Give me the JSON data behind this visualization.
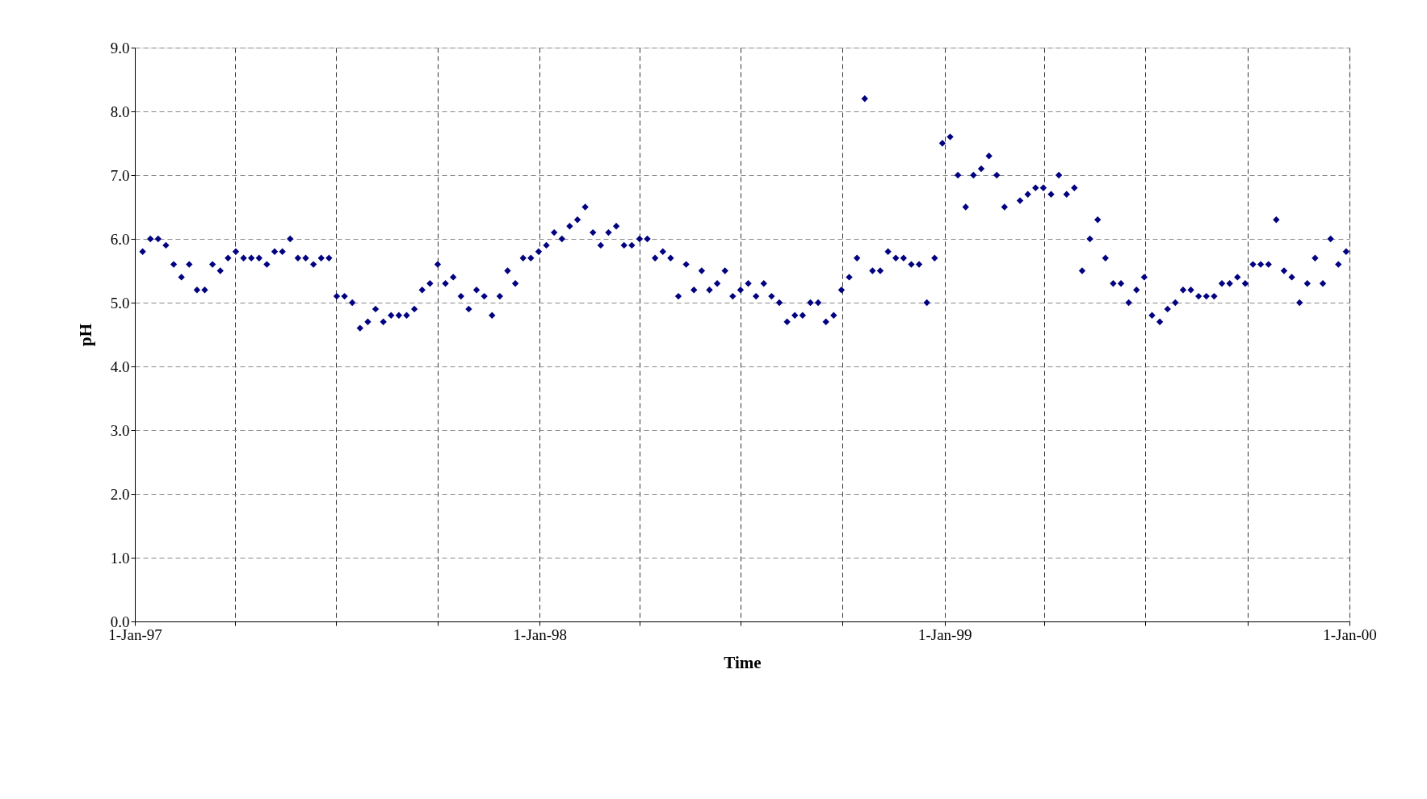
{
  "chart_data": {
    "type": "scatter",
    "xlabel": "Time",
    "ylabel": "pH",
    "x": [
      "1997-01-08",
      "1997-01-15",
      "1997-01-22",
      "1997-01-29",
      "1997-02-05",
      "1997-02-12",
      "1997-02-19",
      "1997-02-26",
      "1997-03-05",
      "1997-03-12",
      "1997-03-19",
      "1997-03-26",
      "1997-04-02",
      "1997-04-09",
      "1997-04-16",
      "1997-04-23",
      "1997-04-30",
      "1997-05-07",
      "1997-05-14",
      "1997-05-21",
      "1997-05-28",
      "1997-06-04",
      "1997-06-11",
      "1997-06-18",
      "1997-06-25",
      "1997-07-02",
      "1997-07-09",
      "1997-07-16",
      "1997-07-23",
      "1997-07-30",
      "1997-08-06",
      "1997-08-13",
      "1997-08-20",
      "1997-08-27",
      "1997-09-03",
      "1997-09-10",
      "1997-09-17",
      "1997-09-24",
      "1997-10-01",
      "1997-10-08",
      "1997-10-15",
      "1997-10-22",
      "1997-10-29",
      "1997-11-05",
      "1997-11-12",
      "1997-11-19",
      "1997-11-26",
      "1997-12-03",
      "1997-12-10",
      "1997-12-17",
      "1997-12-24",
      "1997-12-31",
      "1998-01-07",
      "1998-01-14",
      "1998-01-21",
      "1998-01-28",
      "1998-02-04",
      "1998-02-11",
      "1998-02-18",
      "1998-02-25",
      "1998-03-04",
      "1998-03-11",
      "1998-03-18",
      "1998-03-25",
      "1998-04-01",
      "1998-04-08",
      "1998-04-15",
      "1998-04-22",
      "1998-04-29",
      "1998-05-06",
      "1998-05-13",
      "1998-05-20",
      "1998-05-27",
      "1998-06-03",
      "1998-06-10",
      "1998-06-17",
      "1998-06-24",
      "1998-07-01",
      "1998-07-08",
      "1998-07-15",
      "1998-07-22",
      "1998-07-29",
      "1998-08-05",
      "1998-08-12",
      "1998-08-19",
      "1998-08-26",
      "1998-09-02",
      "1998-09-09",
      "1998-09-16",
      "1998-09-23",
      "1998-09-30",
      "1998-10-07",
      "1998-10-14",
      "1998-10-21",
      "1998-10-28",
      "1998-11-04",
      "1998-11-11",
      "1998-11-18",
      "1998-11-25",
      "1998-12-02",
      "1998-12-09",
      "1998-12-16",
      "1998-12-23",
      "1998-12-30",
      "1999-01-06",
      "1999-01-13",
      "1999-01-20",
      "1999-01-27",
      "1999-02-03",
      "1999-02-10",
      "1999-02-17",
      "1999-02-24",
      "1999-03-10",
      "1999-03-17",
      "1999-03-24",
      "1999-03-31",
      "1999-04-07",
      "1999-04-14",
      "1999-04-21",
      "1999-04-28",
      "1999-05-05",
      "1999-05-12",
      "1999-05-19",
      "1999-05-26",
      "1999-06-02",
      "1999-06-09",
      "1999-06-16",
      "1999-06-23",
      "1999-06-30",
      "1999-07-07",
      "1999-07-14",
      "1999-07-21",
      "1999-07-28",
      "1999-08-04",
      "1999-08-11",
      "1999-08-18",
      "1999-08-25",
      "1999-09-01",
      "1999-09-08",
      "1999-09-15",
      "1999-09-22",
      "1999-09-29",
      "1999-10-06",
      "1999-10-13",
      "1999-10-20",
      "1999-10-27",
      "1999-11-03",
      "1999-11-10",
      "1999-11-17",
      "1999-11-24",
      "1999-12-01",
      "1999-12-08",
      "1999-12-15",
      "1999-12-22",
      "1999-12-29"
    ],
    "series": [
      {
        "color": "#000080",
        "values": [
          5.8,
          6.0,
          6.0,
          5.9,
          5.6,
          5.4,
          5.6,
          5.2,
          5.2,
          5.6,
          5.5,
          5.7,
          5.8,
          5.7,
          5.7,
          5.7,
          5.6,
          5.8,
          5.8,
          6.0,
          5.7,
          5.7,
          5.6,
          5.7,
          5.7,
          5.1,
          5.1,
          5.0,
          4.6,
          4.7,
          4.9,
          4.7,
          4.8,
          4.8,
          4.8,
          4.9,
          5.2,
          5.3,
          5.6,
          5.3,
          5.4,
          5.1,
          4.9,
          5.2,
          5.1,
          4.8,
          5.1,
          5.5,
          5.3,
          5.7,
          5.7,
          5.8,
          5.9,
          6.1,
          6.0,
          6.2,
          6.3,
          6.5,
          6.1,
          5.9,
          6.1,
          6.2,
          5.9,
          5.9,
          6.0,
          6.0,
          5.7,
          5.8,
          5.7,
          5.1,
          5.6,
          5.2,
          5.5,
          5.2,
          5.3,
          5.5,
          5.1,
          5.2,
          5.3,
          5.1,
          5.3,
          5.1,
          5.0,
          4.7,
          4.8,
          4.8,
          5.0,
          5.0,
          4.7,
          4.8,
          5.2,
          5.4,
          5.7,
          8.2,
          5.5,
          5.5,
          5.8,
          5.7,
          5.7,
          5.6,
          5.6,
          5.0,
          5.7,
          7.5,
          7.6,
          7.0,
          6.5,
          7.0,
          7.1,
          7.3,
          7.0,
          6.5,
          6.6,
          6.7,
          6.8,
          6.8,
          6.7,
          7.0,
          6.7,
          6.8,
          5.5,
          6.0,
          6.3,
          5.7,
          5.3,
          5.3,
          5.0,
          5.2,
          5.4,
          4.8,
          4.7,
          4.9,
          5.0,
          5.2,
          5.2,
          5.1,
          5.1,
          5.1,
          5.3,
          5.3,
          5.4,
          5.3,
          5.6,
          5.6,
          5.6,
          6.3,
          5.5,
          5.4,
          5.0,
          5.3,
          5.7,
          5.3,
          6.0,
          5.6,
          5.8
        ]
      }
    ],
    "xlim": [
      "1997-01-01",
      "2000-01-01"
    ],
    "xticks": [
      {
        "value": "1997-01-01",
        "label": "1-Jan-97"
      },
      {
        "value": "1997-04-01",
        "label": null
      },
      {
        "value": "1997-07-01",
        "label": null
      },
      {
        "value": "1997-10-01",
        "label": null
      },
      {
        "value": "1998-01-01",
        "label": "1-Jan-98"
      },
      {
        "value": "1998-04-01",
        "label": null
      },
      {
        "value": "1998-07-01",
        "label": null
      },
      {
        "value": "1998-10-01",
        "label": null
      },
      {
        "value": "1999-01-01",
        "label": "1-Jan-99"
      },
      {
        "value": "1999-04-01",
        "label": null
      },
      {
        "value": "1999-07-01",
        "label": null
      },
      {
        "value": "1999-10-01",
        "label": null
      },
      {
        "value": "2000-01-01",
        "label": "1-Jan-00"
      }
    ],
    "ylim": [
      0,
      9
    ],
    "yticks": [
      {
        "value": 0,
        "label": "0.0"
      },
      {
        "value": 1,
        "label": "1.0"
      },
      {
        "value": 2,
        "label": "2.0"
      },
      {
        "value": 3,
        "label": "3.0"
      },
      {
        "value": 4,
        "label": "4.0"
      },
      {
        "value": 5,
        "label": "5.0"
      },
      {
        "value": 6,
        "label": "6.0"
      },
      {
        "value": 7,
        "label": "7.0"
      },
      {
        "value": 8,
        "label": "8.0"
      },
      {
        "value": 9,
        "label": "9.0"
      }
    ],
    "grid": true,
    "marker": "diamond",
    "legend": false
  }
}
